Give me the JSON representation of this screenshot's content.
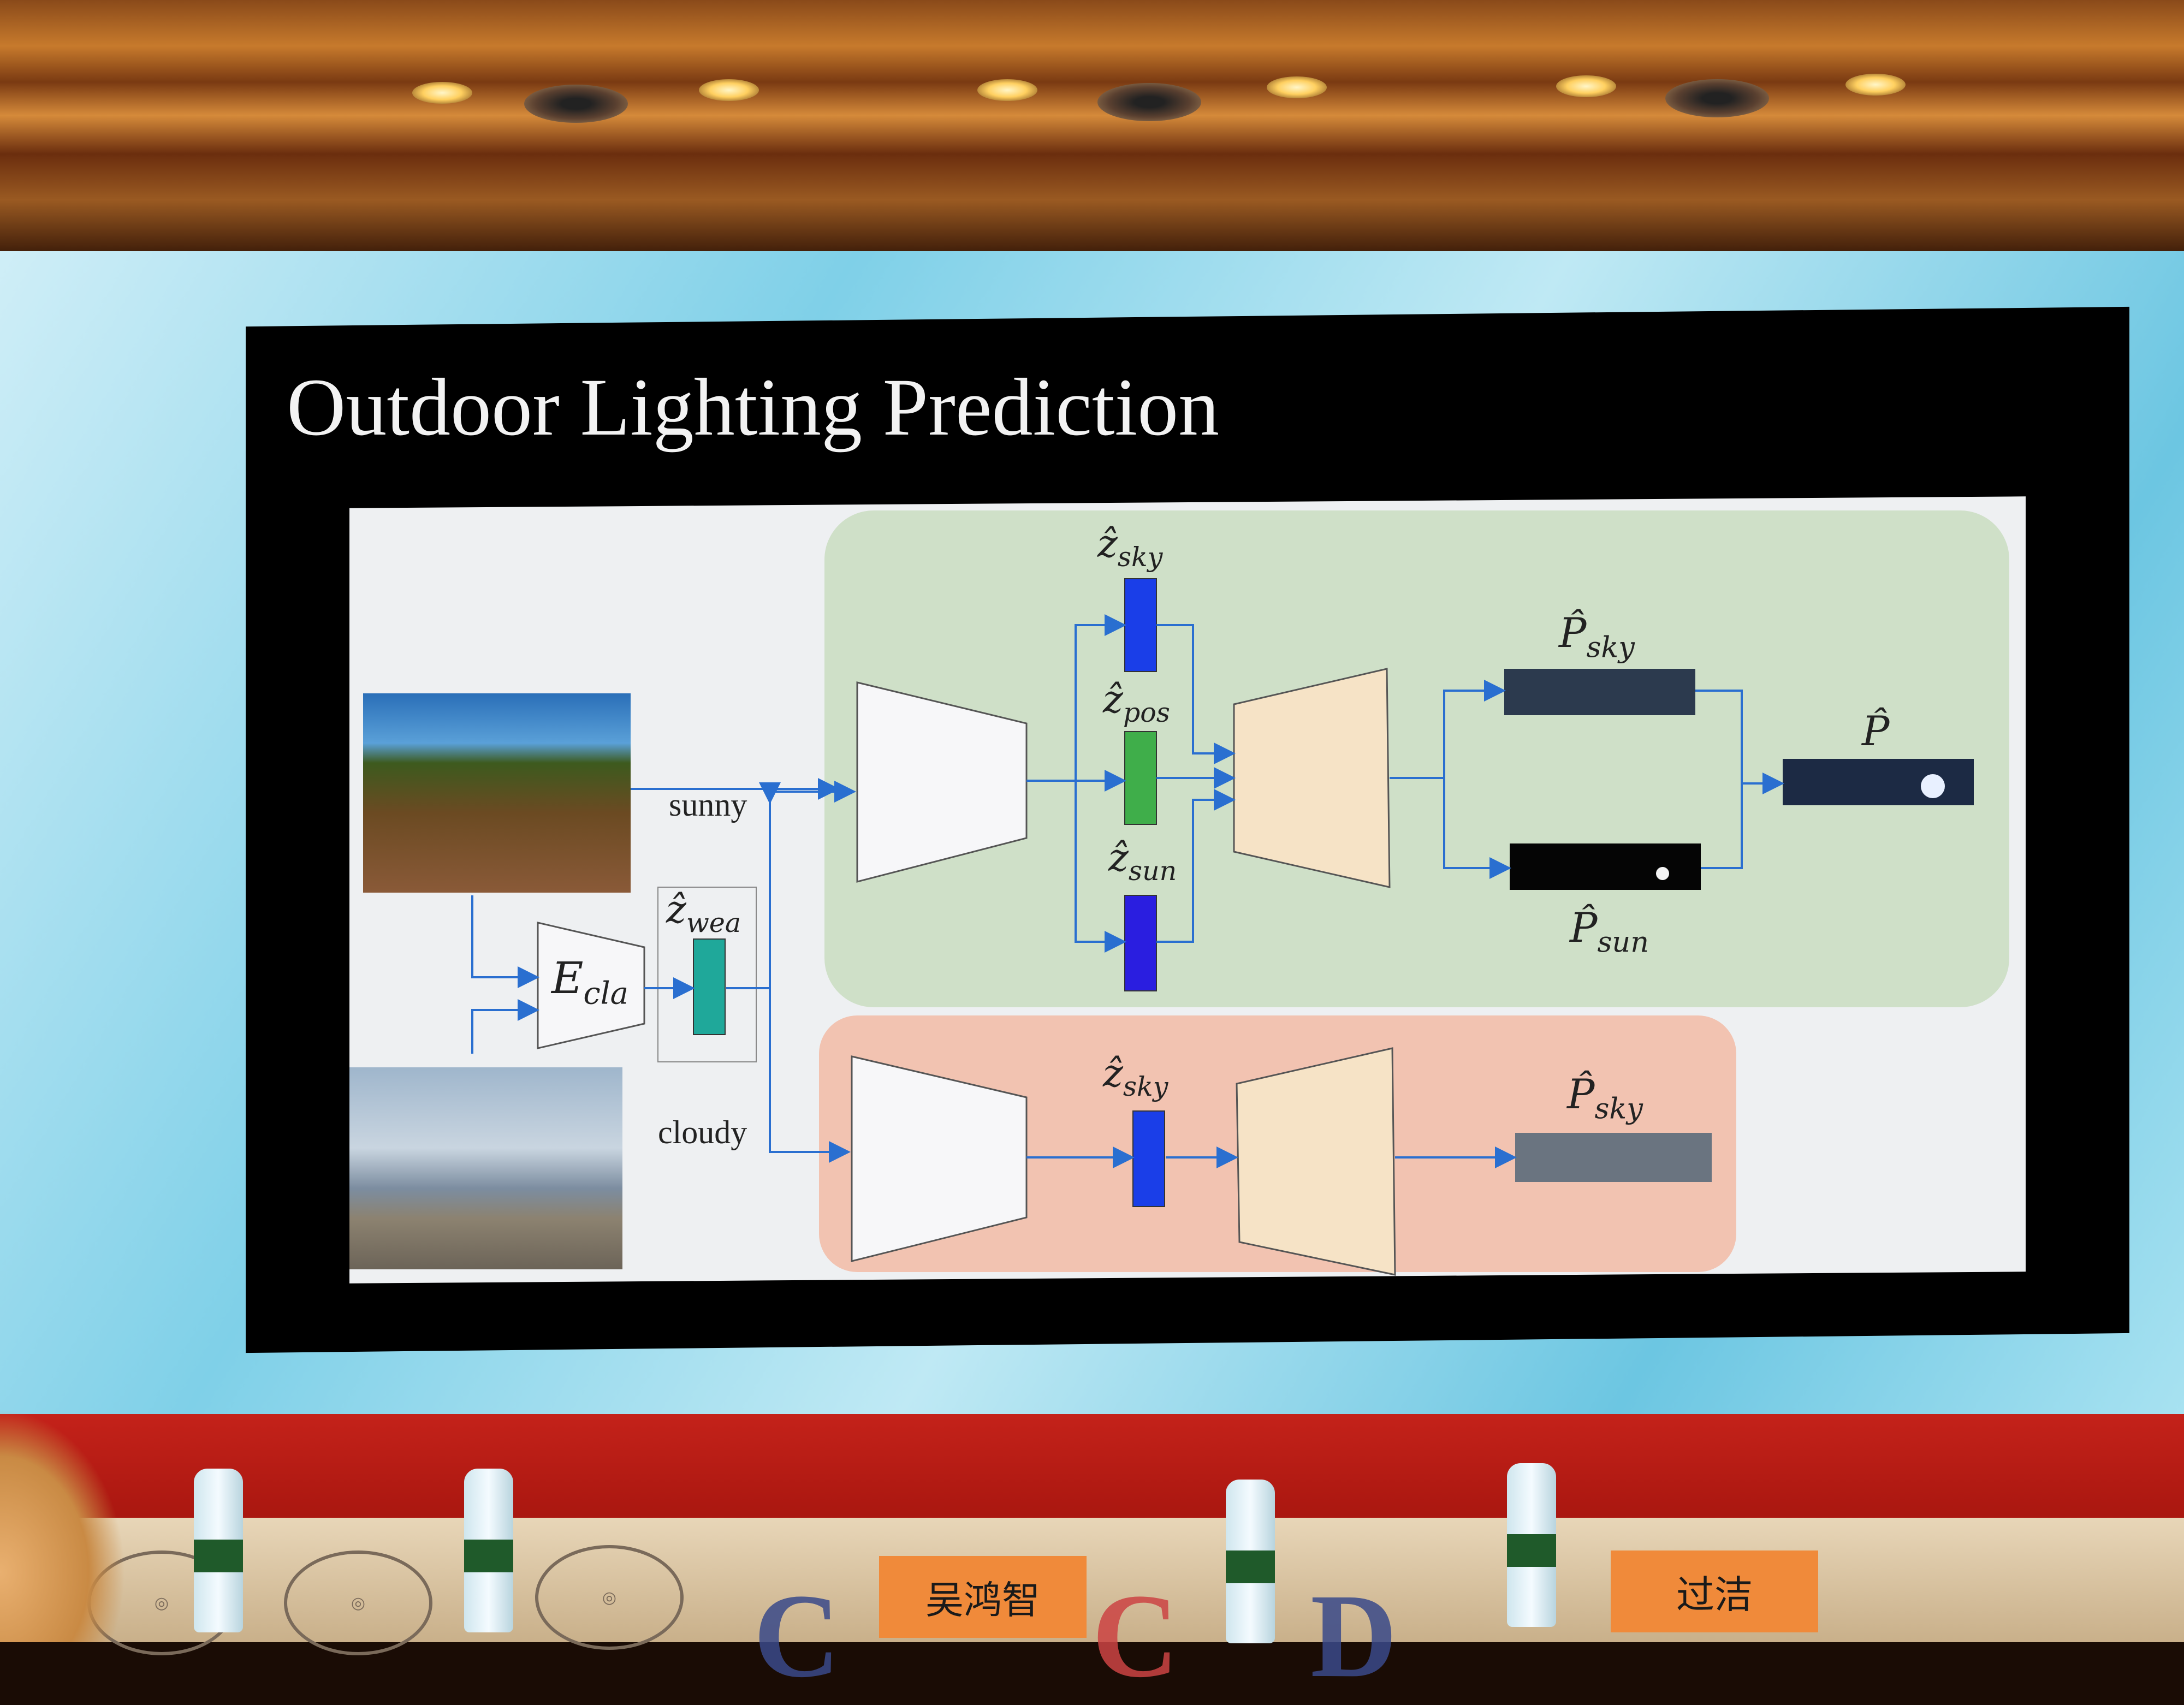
{
  "slide": {
    "title": "Outdoor Lighting Prediction"
  },
  "diagram": {
    "branch_labels": {
      "sunny": "sunny",
      "cloudy": "cloudy"
    },
    "encoder_label": {
      "main": "E",
      "sub": "cla"
    },
    "latents": {
      "z_wea": {
        "main": "ẑ",
        "sub": "wea",
        "color": "#1fa89a"
      },
      "z_sky_sunny": {
        "main": "ẑ",
        "sub": "sky",
        "color": "#1a3ee8"
      },
      "z_pos": {
        "main": "ẑ",
        "sub": "pos",
        "color": "#3fae4a"
      },
      "z_sun": {
        "main": "ẑ",
        "sub": "sun",
        "color": "#2a1ee0"
      },
      "z_sky_cloudy": {
        "main": "ẑ",
        "sub": "sky",
        "color": "#1a3ee8"
      }
    },
    "outputs": {
      "p_sky_sunny": {
        "main": "P̂",
        "sub": "sky"
      },
      "p_sun": {
        "main": "P̂",
        "sub": "sun"
      },
      "p_hat": {
        "main": "P̂"
      },
      "p_sky_cloudy": {
        "main": "P̂",
        "sub": "sky"
      }
    },
    "colors": {
      "sunny_region": "#cfe0c8",
      "cloudy_region": "#f2c3b1",
      "encoder_fill": "#f7f7f9",
      "decoder_fill": "#f6e3c6",
      "arrow": "#2a6fd0"
    }
  },
  "foreground": {
    "nameplates": [
      "吴鸿智",
      "过洁"
    ]
  }
}
